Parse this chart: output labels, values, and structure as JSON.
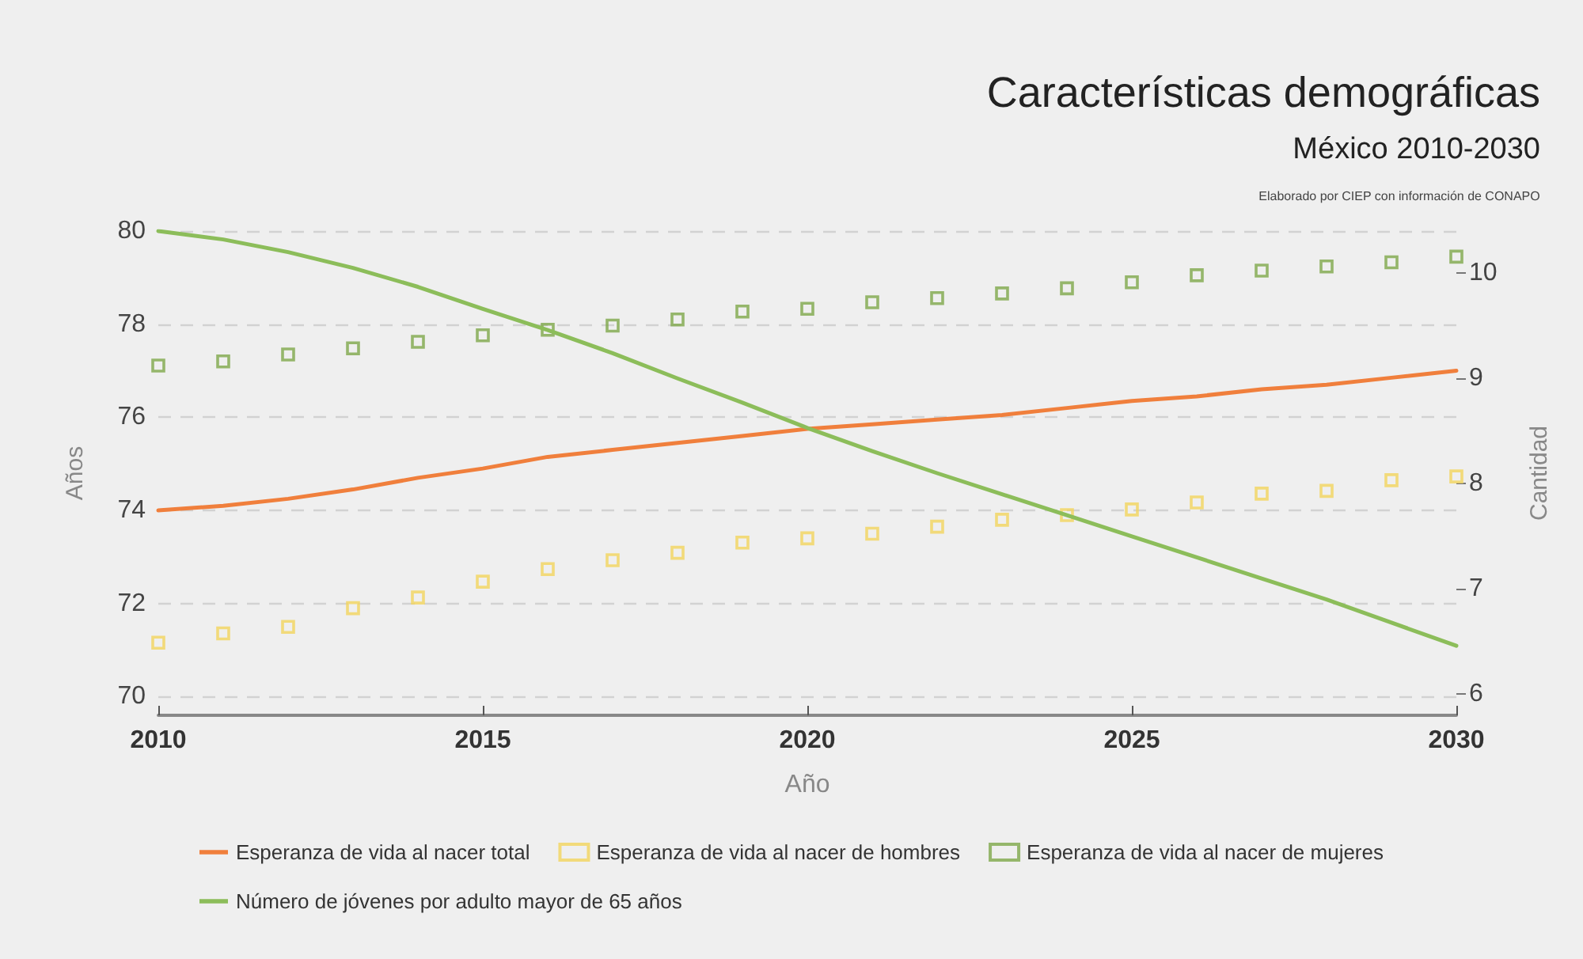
{
  "chart_data": {
    "type": "line",
    "title": "Características demográficas",
    "subtitle": "México 2010-2030",
    "annotations": [
      "Elaborado por CIEP con información de CONAPO"
    ],
    "xlabel": "Año",
    "ylabel": "Años",
    "y2label": "Cantidad",
    "x": [
      2010,
      2011,
      2012,
      2013,
      2014,
      2015,
      2016,
      2017,
      2018,
      2019,
      2020,
      2021,
      2022,
      2023,
      2024,
      2025,
      2026,
      2027,
      2028,
      2029,
      2030
    ],
    "xlim": [
      2010,
      2030
    ],
    "xticks": [
      2010,
      2015,
      2020,
      2025,
      2030
    ],
    "ylim": [
      69.6,
      80
    ],
    "yticks": [
      70,
      72,
      74,
      76,
      78,
      80
    ],
    "y2lim": [
      5.8,
      10.4
    ],
    "y2ticks": [
      6,
      7,
      8,
      9,
      10
    ],
    "grid": "y",
    "legend": "bottom",
    "marker": "none",
    "line_style": "solid",
    "series": [
      {
        "name": "Esperanza de vida al nacer total",
        "color": "#f07f3c",
        "values": [
          74.0,
          74.1,
          74.25,
          74.45,
          74.7,
          74.9,
          75.15,
          75.3,
          75.45,
          75.6,
          75.75,
          75.85,
          75.95,
          76.05,
          76.2,
          76.35,
          76.45,
          76.6,
          76.7,
          76.85,
          77.0
        ]
      },
      {
        "name": "Esperanza de vida al nacer de hombres",
        "type": "scatter",
        "marker": "square",
        "color": "#f2d45c",
        "values": [
          71.16,
          71.36,
          71.5,
          71.9,
          72.13,
          72.47,
          72.74,
          72.93,
          73.09,
          73.31,
          73.4,
          73.5,
          73.65,
          73.8,
          73.9,
          74.02,
          74.17,
          74.36,
          74.42,
          74.65,
          74.73
        ]
      },
      {
        "name": "Esperanza de vida al nacer de mujeres",
        "type": "scatter",
        "marker": "square",
        "color": "#7ea84a",
        "values": [
          77.11,
          77.2,
          77.35,
          77.48,
          77.62,
          77.76,
          77.88,
          77.97,
          78.1,
          78.27,
          78.33,
          78.47,
          78.56,
          78.66,
          78.77,
          78.9,
          79.05,
          79.15,
          79.24,
          79.33,
          79.45
        ]
      },
      {
        "name": "Número de jóvenes por adulto mayor de 65 años",
        "type": "line",
        "axis": "y2",
        "color": "#8cbd5a",
        "values": [
          10.4,
          10.32,
          10.2,
          10.05,
          9.87,
          9.66,
          9.46,
          9.24,
          9.0,
          8.77,
          8.53,
          8.31,
          8.1,
          7.9,
          7.7,
          7.5,
          7.3,
          7.1,
          6.9,
          6.68,
          6.46
        ]
      }
    ]
  }
}
